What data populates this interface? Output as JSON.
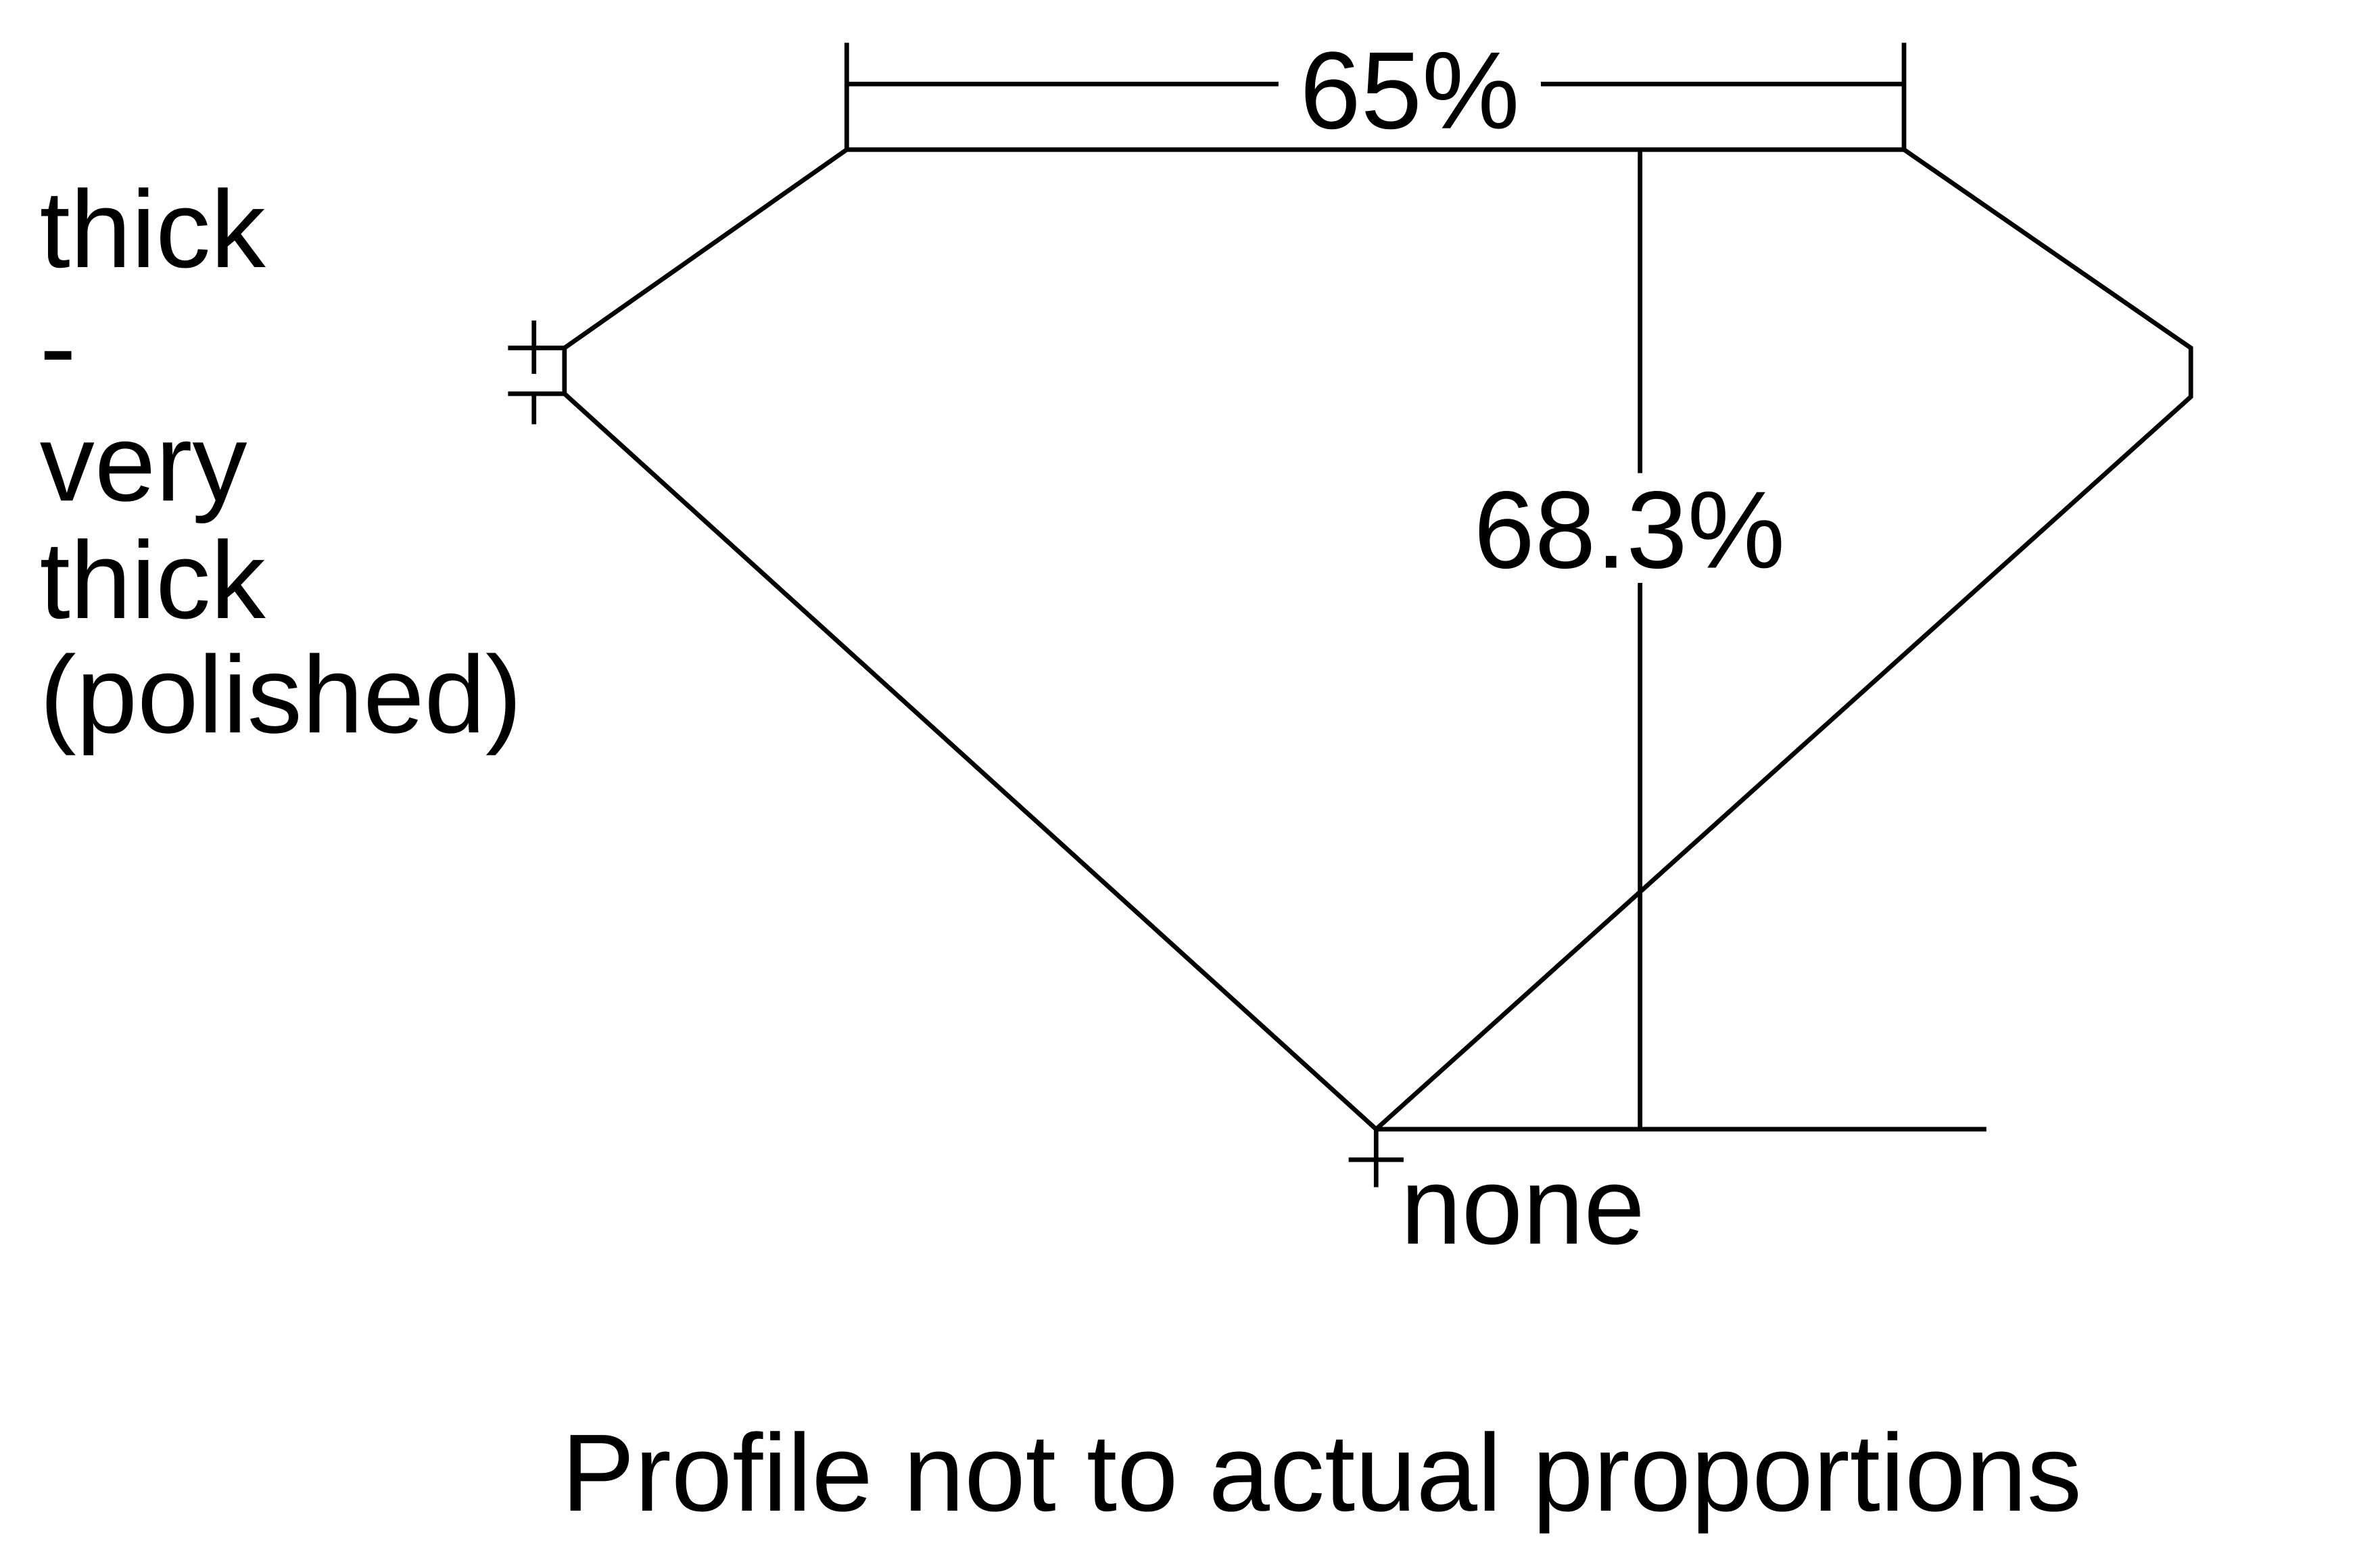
{
  "diagram": {
    "table_width_label": "65%",
    "total_depth_label": "68.3%",
    "girdle_label_lines": [
      "thick",
      "-",
      "very",
      "thick",
      "(polished)"
    ],
    "culet_label": "none",
    "footnote": "Profile not to actual proportions",
    "line_color": "#000000",
    "background_color": "#ffffff"
  }
}
